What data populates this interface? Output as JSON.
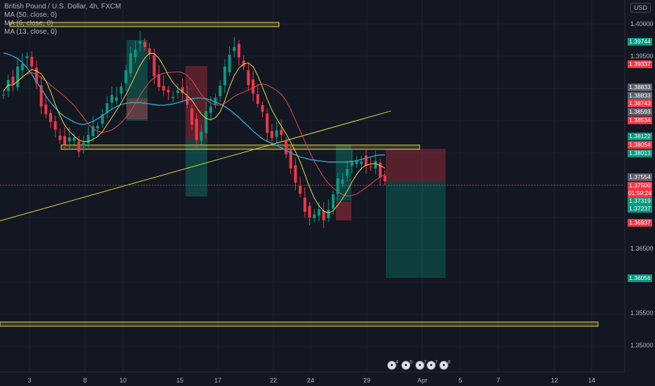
{
  "legend": {
    "symbol": "British Pound / U.S. Dollar, 4h, FXCM",
    "ma50": "MA (50, close, 0)",
    "ma6": "MA (6, close, 0)",
    "ma13": "MA (13, close, 0)"
  },
  "currency": "USD",
  "price_axis": [
    "1.40000",
    "1.39500",
    "1.36500",
    "1.35500",
    "1.35000"
  ],
  "price_labels": [
    {
      "text": "1.39744",
      "color": "#089981"
    },
    {
      "text": "1.39337",
      "color": "#f23645"
    },
    {
      "text": "1.38833",
      "color": "#5d606b"
    },
    {
      "text": "1.38833",
      "color": "#5d606b"
    },
    {
      "text": "1.38743",
      "color": "#f23645"
    },
    {
      "text": "1.38593",
      "color": "#5d606b"
    },
    {
      "text": "1.38534",
      "color": "#f23645"
    },
    {
      "text": "1.38122",
      "color": "#089981"
    },
    {
      "text": "1.38054",
      "color": "#f23645"
    },
    {
      "text": "1.38013",
      "color": "#089981"
    },
    {
      "text": "1.37554",
      "color": "#5d606b"
    },
    {
      "text": "1.37500",
      "color": "#f23645"
    },
    {
      "text": "01:59:24",
      "color": "#f23645"
    },
    {
      "text": "1.37319",
      "color": "#089981"
    },
    {
      "text": "1.37237",
      "color": "#089981"
    },
    {
      "text": "1.36937",
      "color": "#f23645"
    },
    {
      "text": "1.36056",
      "color": "#089981"
    }
  ],
  "date_axis": [
    "3",
    "8",
    "10",
    "15",
    "17",
    "22",
    "24",
    "29",
    "Apr",
    "5",
    "7",
    "12",
    "14"
  ],
  "event_badges": [
    "4",
    "5",
    "7",
    "7",
    "8"
  ],
  "colors": {
    "up": "#089981",
    "down": "#f23645",
    "ma50": "#2fa4c7",
    "ma6": "#e6d84a",
    "ma13": "#e04a4a",
    "zone": "#e6d84a",
    "trendline": "#e6d84a"
  },
  "chart_data": {
    "type": "candlestick",
    "symbol": "British Pound / U.S. Dollar",
    "interval": "4h",
    "ylim": [
      1.3465,
      1.4022
    ],
    "closes": [
      1.3896,
      1.3915,
      1.3905,
      1.3928,
      1.3944,
      1.3952,
      1.3932,
      1.3902,
      1.3878,
      1.3862,
      1.3846,
      1.383,
      1.3826,
      1.3815,
      1.3822,
      1.3818,
      1.3808,
      1.3818,
      1.3826,
      1.3835,
      1.3848,
      1.3862,
      1.3875,
      1.3884,
      1.3892,
      1.3905,
      1.3926,
      1.3948,
      1.3966,
      1.3975,
      1.3962,
      1.3948,
      1.3925,
      1.3904,
      1.3895,
      1.3888,
      1.3893,
      1.3899,
      1.3891,
      1.3869,
      1.385,
      1.3822,
      1.3831,
      1.3859,
      1.3878,
      1.3888,
      1.3902,
      1.3928,
      1.3958,
      1.3966,
      1.3946,
      1.3928,
      1.3911,
      1.3894,
      1.3874,
      1.3858,
      1.3837,
      1.3825,
      1.3833,
      1.3822,
      1.3804,
      1.3778,
      1.3752,
      1.3731,
      1.3715,
      1.3702,
      1.3703,
      1.3707,
      1.3702,
      1.3714,
      1.3734,
      1.3755,
      1.3765,
      1.3777,
      1.3786,
      1.3783,
      1.3793,
      1.3782,
      1.3776,
      1.3782,
      1.3768,
      1.3758
    ],
    "ma50": [
      1.3955,
      1.3953,
      1.395,
      1.3946,
      1.394,
      1.3932,
      1.3922,
      1.391,
      1.39,
      1.3888,
      1.3878,
      1.387,
      1.3862,
      1.3856,
      1.3852,
      1.3848,
      1.3845,
      1.3844,
      1.3846,
      1.3849,
      1.3853,
      1.3858,
      1.3863,
      1.3868,
      1.3872,
      1.3875,
      1.3877,
      1.3878,
      1.3878,
      1.3878,
      1.3877,
      1.3876,
      1.3875,
      1.3874,
      1.3874,
      1.3875,
      1.3876,
      1.3878,
      1.388,
      1.3882,
      1.3884,
      1.3885,
      1.3885,
      1.3884,
      1.3882,
      1.3879,
      1.3876,
      1.3872,
      1.3867,
      1.3861,
      1.3855,
      1.3848,
      1.3841,
      1.3834,
      1.3828,
      1.3822,
      1.3818,
      1.3815,
      1.3812,
      1.3808,
      1.3804,
      1.38,
      1.3797,
      1.3794,
      1.3792,
      1.379,
      1.3789,
      1.3788,
      1.3787,
      1.3786,
      1.3786,
      1.3786,
      1.3786,
      1.3786,
      1.3787,
      1.3788,
      1.379,
      1.3792,
      1.3794,
      1.3796,
      1.3797,
      1.3797
    ],
    "horizontal_zones": [
      1.3999,
      1.3809,
      1.3535
    ],
    "trendline": [
      [
        0,
        1.3695
      ],
      [
        80,
        1.3865
      ]
    ],
    "current_price": 1.375
  }
}
